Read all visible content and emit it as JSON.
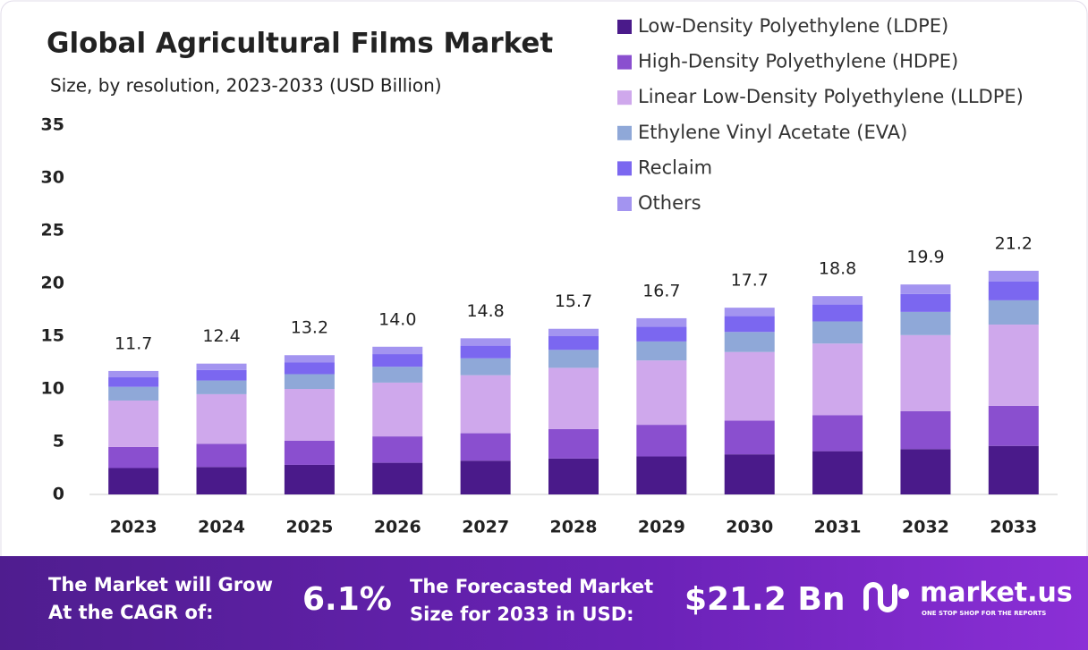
{
  "chart_data": {
    "type": "stacked-bar",
    "title": "Global Agricultural Films Market",
    "subtitle": "Size, by resolution, 2023-2033 (USD Billion)",
    "categories": [
      "2023",
      "2024",
      "2025",
      "2026",
      "2027",
      "2028",
      "2029",
      "2030",
      "2031",
      "2032",
      "2033"
    ],
    "series": [
      {
        "name": "Low-Density Polyethylene (LDPE)",
        "color": "#4a1a8a",
        "values": [
          2.5,
          2.6,
          2.8,
          3.0,
          3.2,
          3.4,
          3.6,
          3.8,
          4.1,
          4.3,
          4.6
        ]
      },
      {
        "name": "High-Density Polyethylene (HDPE)",
        "color": "#8a4fcf",
        "values": [
          2.0,
          2.2,
          2.3,
          2.5,
          2.6,
          2.8,
          3.0,
          3.2,
          3.4,
          3.6,
          3.8
        ]
      },
      {
        "name": "Linear Low-Density Polyethylene (LLDPE)",
        "color": "#cfa8ec",
        "values": [
          4.4,
          4.7,
          4.9,
          5.1,
          5.5,
          5.8,
          6.1,
          6.5,
          6.8,
          7.2,
          7.7
        ]
      },
      {
        "name": "Ethylene Vinyl Acetate (EVA)",
        "color": "#8fa8d8",
        "values": [
          1.3,
          1.3,
          1.4,
          1.5,
          1.6,
          1.7,
          1.8,
          1.9,
          2.1,
          2.2,
          2.3
        ]
      },
      {
        "name": "Reclaim",
        "color": "#7b67f0",
        "values": [
          0.9,
          1.0,
          1.1,
          1.2,
          1.2,
          1.3,
          1.4,
          1.5,
          1.6,
          1.7,
          1.8
        ]
      },
      {
        "name": "Others",
        "color": "#a394f0",
        "values": [
          0.6,
          0.6,
          0.7,
          0.7,
          0.7,
          0.7,
          0.8,
          0.8,
          0.8,
          0.9,
          1.0
        ]
      }
    ],
    "totals": [
      11.7,
      12.4,
      13.2,
      14.0,
      14.8,
      15.7,
      16.7,
      17.7,
      18.8,
      19.9,
      21.2
    ],
    "total_labels": [
      "11.7",
      "12.4",
      "13.2",
      "14.0",
      "14.8",
      "15.7",
      "16.7",
      "17.7",
      "18.8",
      "19.9",
      "21.2"
    ],
    "ylim": [
      0,
      35
    ],
    "yticks": [
      0,
      5,
      10,
      15,
      20,
      25,
      30,
      35
    ],
    "grid": false,
    "legend": "top-right"
  },
  "footer": {
    "cagr_text": [
      "The Market will Grow",
      "At the CAGR of:"
    ],
    "cagr_value": "6.1%",
    "forecast_text": [
      "The Forecasted Market",
      "Size for 2033 in USD:"
    ],
    "forecast_value": "$21.2 Bn",
    "brand": "market.us",
    "tagline": "ONE STOP SHOP FOR THE REPORTS"
  }
}
